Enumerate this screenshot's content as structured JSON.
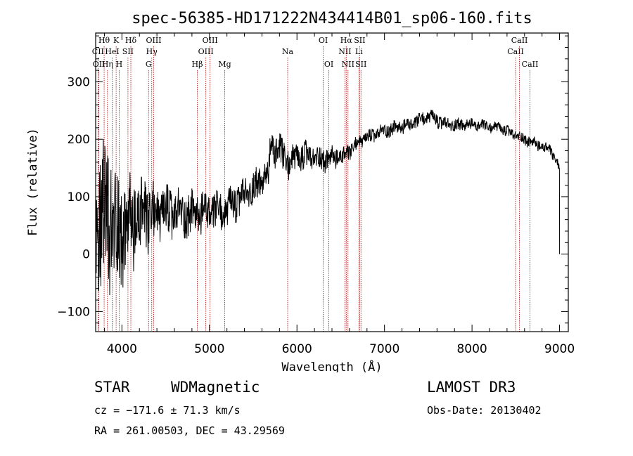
{
  "chart_data": {
    "type": "line",
    "title": "spec-56385-HD171222N434414B01_sp06-160.fits",
    "xlabel": "Wavelength (Å)",
    "ylabel": "Flux (relative)",
    "xlim": [
      3700,
      9100
    ],
    "ylim": [
      -135,
      385
    ],
    "xticks": [
      4000,
      5000,
      6000,
      7000,
      8000,
      9000
    ],
    "yticks": [
      -100,
      0,
      100,
      200,
      300
    ],
    "grid": false,
    "spectrum_anchors": [
      {
        "x": 3700,
        "y": 60,
        "noise": 90
      },
      {
        "x": 3760,
        "y": 40,
        "noise": 160
      },
      {
        "x": 3840,
        "y": 60,
        "noise": 190
      },
      {
        "x": 3920,
        "y": 40,
        "noise": 140
      },
      {
        "x": 4000,
        "y": 40,
        "noise": 100
      },
      {
        "x": 4200,
        "y": 60,
        "noise": 90
      },
      {
        "x": 4400,
        "y": 70,
        "noise": 60
      },
      {
        "x": 4800,
        "y": 70,
        "noise": 45
      },
      {
        "x": 5200,
        "y": 75,
        "noise": 40
      },
      {
        "x": 5500,
        "y": 115,
        "noise": 35
      },
      {
        "x": 5680,
        "y": 140,
        "noise": 30
      },
      {
        "x": 5700,
        "y": 190,
        "noise": 40
      },
      {
        "x": 5900,
        "y": 160,
        "noise": 35
      },
      {
        "x": 6100,
        "y": 170,
        "noise": 30
      },
      {
        "x": 6300,
        "y": 165,
        "noise": 25
      },
      {
        "x": 6550,
        "y": 170,
        "noise": 20
      },
      {
        "x": 6700,
        "y": 195,
        "noise": 15
      },
      {
        "x": 7000,
        "y": 215,
        "noise": 15
      },
      {
        "x": 7300,
        "y": 225,
        "noise": 15
      },
      {
        "x": 7500,
        "y": 240,
        "noise": 15
      },
      {
        "x": 7700,
        "y": 225,
        "noise": 15
      },
      {
        "x": 8000,
        "y": 225,
        "noise": 12
      },
      {
        "x": 8300,
        "y": 220,
        "noise": 12
      },
      {
        "x": 8600,
        "y": 200,
        "noise": 12
      },
      {
        "x": 8900,
        "y": 180,
        "noise": 12
      },
      {
        "x": 9000,
        "y": 150,
        "noise": 10
      }
    ],
    "lines": [
      {
        "label": "CII",
        "wavelength": 3727,
        "row": 2
      },
      {
        "label": "OII",
        "wavelength": 3737,
        "row": 3
      },
      {
        "label": "Hθ",
        "wavelength": 3797,
        "row": 1
      },
      {
        "label": "Hη",
        "wavelength": 3835,
        "row": 3
      },
      {
        "label": "HeI",
        "wavelength": 3889,
        "row": 2
      },
      {
        "label": "K",
        "wavelength": 3934,
        "row": 1
      },
      {
        "label": "H",
        "wavelength": 3969,
        "row": 3
      },
      {
        "label": "SII",
        "wavelength": 4069,
        "row": 2
      },
      {
        "label": "Hδ",
        "wavelength": 4102,
        "row": 1
      },
      {
        "label": "G",
        "wavelength": 4305,
        "row": 3
      },
      {
        "label": "Hγ",
        "wavelength": 4341,
        "row": 2
      },
      {
        "label": "OIII",
        "wavelength": 4363,
        "row": 1
      },
      {
        "label": "Hβ",
        "wavelength": 4861,
        "row": 3
      },
      {
        "label": "OIII",
        "wavelength": 4959,
        "row": 2
      },
      {
        "label": "OIII",
        "wavelength": 5007,
        "row": 1
      },
      {
        "label": "Mg",
        "wavelength": 5175,
        "row": 3
      },
      {
        "label": "Na",
        "wavelength": 5894,
        "row": 2
      },
      {
        "label": "OI",
        "wavelength": 6300,
        "row": 1
      },
      {
        "label": "OI",
        "wavelength": 6364,
        "row": 3
      },
      {
        "label": "NII",
        "wavelength": 6548,
        "row": 2
      },
      {
        "label": "Hα",
        "wavelength": 6563,
        "row": 1
      },
      {
        "label": "NII",
        "wavelength": 6583,
        "row": 3
      },
      {
        "label": "Li",
        "wavelength": 6708,
        "row": 2
      },
      {
        "label": "SII",
        "wavelength": 6716,
        "row": 1
      },
      {
        "label": "SII",
        "wavelength": 6731,
        "row": 3
      },
      {
        "label": "CaII",
        "wavelength": 8498,
        "row": 2
      },
      {
        "label": "CaII",
        "wavelength": 8542,
        "row": 1
      },
      {
        "label": "CaII",
        "wavelength": 8662,
        "row": 3
      }
    ]
  },
  "info": {
    "class": "STAR",
    "subclass": "WDMagnetic",
    "survey": "LAMOST DR3",
    "cz": "cz = −171.6 ± 71.3 km/s",
    "obs_date": "Obs-Date: 20130402",
    "radec": "RA = 261.00503, DEC =  43.29569"
  }
}
